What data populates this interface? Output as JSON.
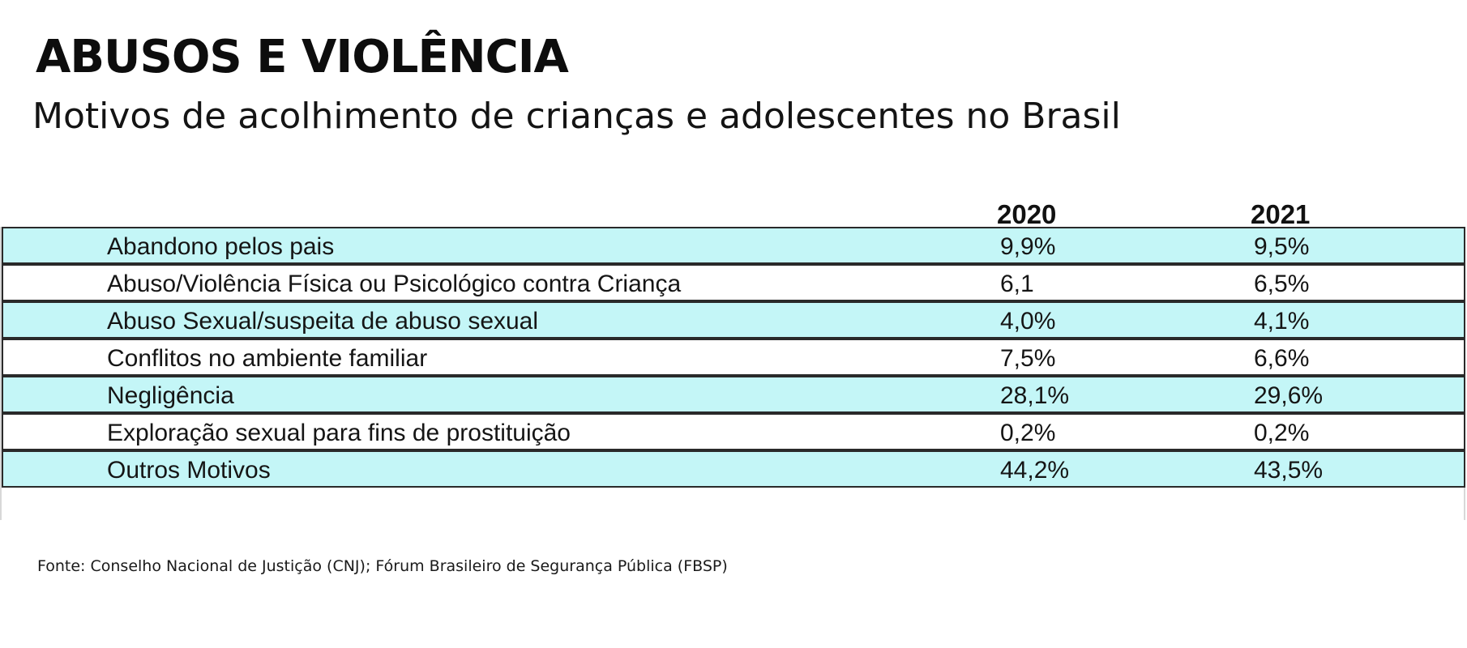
{
  "title": "ABUSOS E VIOLÊNCIA",
  "subtitle": "Motivos de acolhimento  de crianças  e adolescentes no Brasil",
  "source": "Fonte: Conselho Nacional de Justição (CNJ); Fórum Brasileiro de Segurança Pública (FBSP)",
  "colors": {
    "row_highlight": "#c4f6f7",
    "row_plain": "#ffffff",
    "border": "#2a2a2a"
  },
  "chart_data": {
    "type": "table",
    "title": "ABUSOS E VIOLÊNCIA",
    "subtitle": "Motivos de acolhimento  de crianças  e adolescentes no Brasil",
    "columns": [
      "2020",
      "2021"
    ],
    "rows": [
      {
        "label": "Abandono pelos pais",
        "v2020": "9,9%",
        "v2021": "9,5%"
      },
      {
        "label": "Abuso/Violência Física ou Psicológico contra Criança",
        "v2020": "6,1",
        "v2021": "6,5%"
      },
      {
        "label": "Abuso Sexual/suspeita de abuso sexual",
        "v2020": "4,0%",
        "v2021": "4,1%"
      },
      {
        "label": "Conflitos no ambiente familiar",
        "v2020": "7,5%",
        "v2021": "6,6%"
      },
      {
        "label": "Negligência",
        "v2020": "28,1%",
        "v2021": "29,6%"
      },
      {
        "label": "Exploração sexual para fins de prostituição",
        "v2020": "0,2%",
        "v2021": "0,2%"
      },
      {
        "label": "Outros Motivos",
        "v2020": "44,2%",
        "v2021": "43,5%"
      }
    ]
  }
}
